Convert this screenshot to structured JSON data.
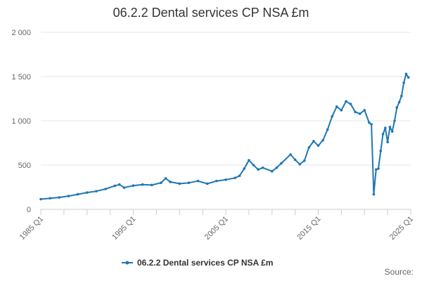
{
  "chart_data": {
    "type": "line",
    "title": "06.2.2 Dental services CP NSA £m",
    "xlabel": "",
    "ylabel": "",
    "x_tick_labels": [
      "1985 Q1",
      "1995 Q1",
      "2005 Q1",
      "2015 Q1",
      "2025 Q1"
    ],
    "y_ticks": [
      0,
      500,
      1000,
      1500,
      2000
    ],
    "y_tick_labels": [
      "0",
      "500",
      "1 000",
      "1 500",
      "2 000"
    ],
    "ylim": [
      0,
      2000
    ],
    "xlim": [
      1985.0,
      2025.0
    ],
    "grid": true,
    "legend_position": "bottom",
    "source_label": "Source:",
    "color": "#1f77b4",
    "series": [
      {
        "name": "06.2.2 Dental services CP NSA £m",
        "points": [
          [
            1985.0,
            115
          ],
          [
            1986.0,
            125
          ],
          [
            1987.0,
            135
          ],
          [
            1988.0,
            150
          ],
          [
            1989.0,
            170
          ],
          [
            1990.0,
            190
          ],
          [
            1991.0,
            205
          ],
          [
            1992.0,
            230
          ],
          [
            1993.0,
            265
          ],
          [
            1993.5,
            280
          ],
          [
            1994.0,
            245
          ],
          [
            1995.0,
            268
          ],
          [
            1996.0,
            280
          ],
          [
            1997.0,
            275
          ],
          [
            1998.0,
            300
          ],
          [
            1998.5,
            350
          ],
          [
            1999.0,
            310
          ],
          [
            2000.0,
            290
          ],
          [
            2001.0,
            300
          ],
          [
            2002.0,
            320
          ],
          [
            2003.0,
            290
          ],
          [
            2004.0,
            320
          ],
          [
            2005.0,
            335
          ],
          [
            2006.0,
            355
          ],
          [
            2006.5,
            380
          ],
          [
            2007.0,
            460
          ],
          [
            2007.5,
            555
          ],
          [
            2008.0,
            500
          ],
          [
            2008.5,
            450
          ],
          [
            2009.0,
            470
          ],
          [
            2010.0,
            430
          ],
          [
            2010.5,
            470
          ],
          [
            2011.0,
            520
          ],
          [
            2012.0,
            620
          ],
          [
            2012.5,
            560
          ],
          [
            2013.0,
            510
          ],
          [
            2013.5,
            550
          ],
          [
            2014.0,
            700
          ],
          [
            2014.5,
            770
          ],
          [
            2015.0,
            720
          ],
          [
            2015.5,
            780
          ],
          [
            2016.0,
            900
          ],
          [
            2016.5,
            1050
          ],
          [
            2017.0,
            1160
          ],
          [
            2017.5,
            1120
          ],
          [
            2018.0,
            1220
          ],
          [
            2018.5,
            1190
          ],
          [
            2019.0,
            1100
          ],
          [
            2019.5,
            1080
          ],
          [
            2020.0,
            1120
          ],
          [
            2020.5,
            980
          ],
          [
            2020.75,
            960
          ],
          [
            2021.0,
            170
          ],
          [
            2021.25,
            450
          ],
          [
            2021.5,
            460
          ],
          [
            2021.75,
            660
          ],
          [
            2022.0,
            850
          ],
          [
            2022.25,
            920
          ],
          [
            2022.5,
            760
          ],
          [
            2022.75,
            930
          ],
          [
            2023.0,
            880
          ],
          [
            2023.25,
            1000
          ],
          [
            2023.5,
            1150
          ],
          [
            2023.75,
            1210
          ],
          [
            2024.0,
            1280
          ],
          [
            2024.25,
            1430
          ],
          [
            2024.5,
            1530
          ],
          [
            2024.75,
            1490
          ]
        ]
      }
    ]
  }
}
